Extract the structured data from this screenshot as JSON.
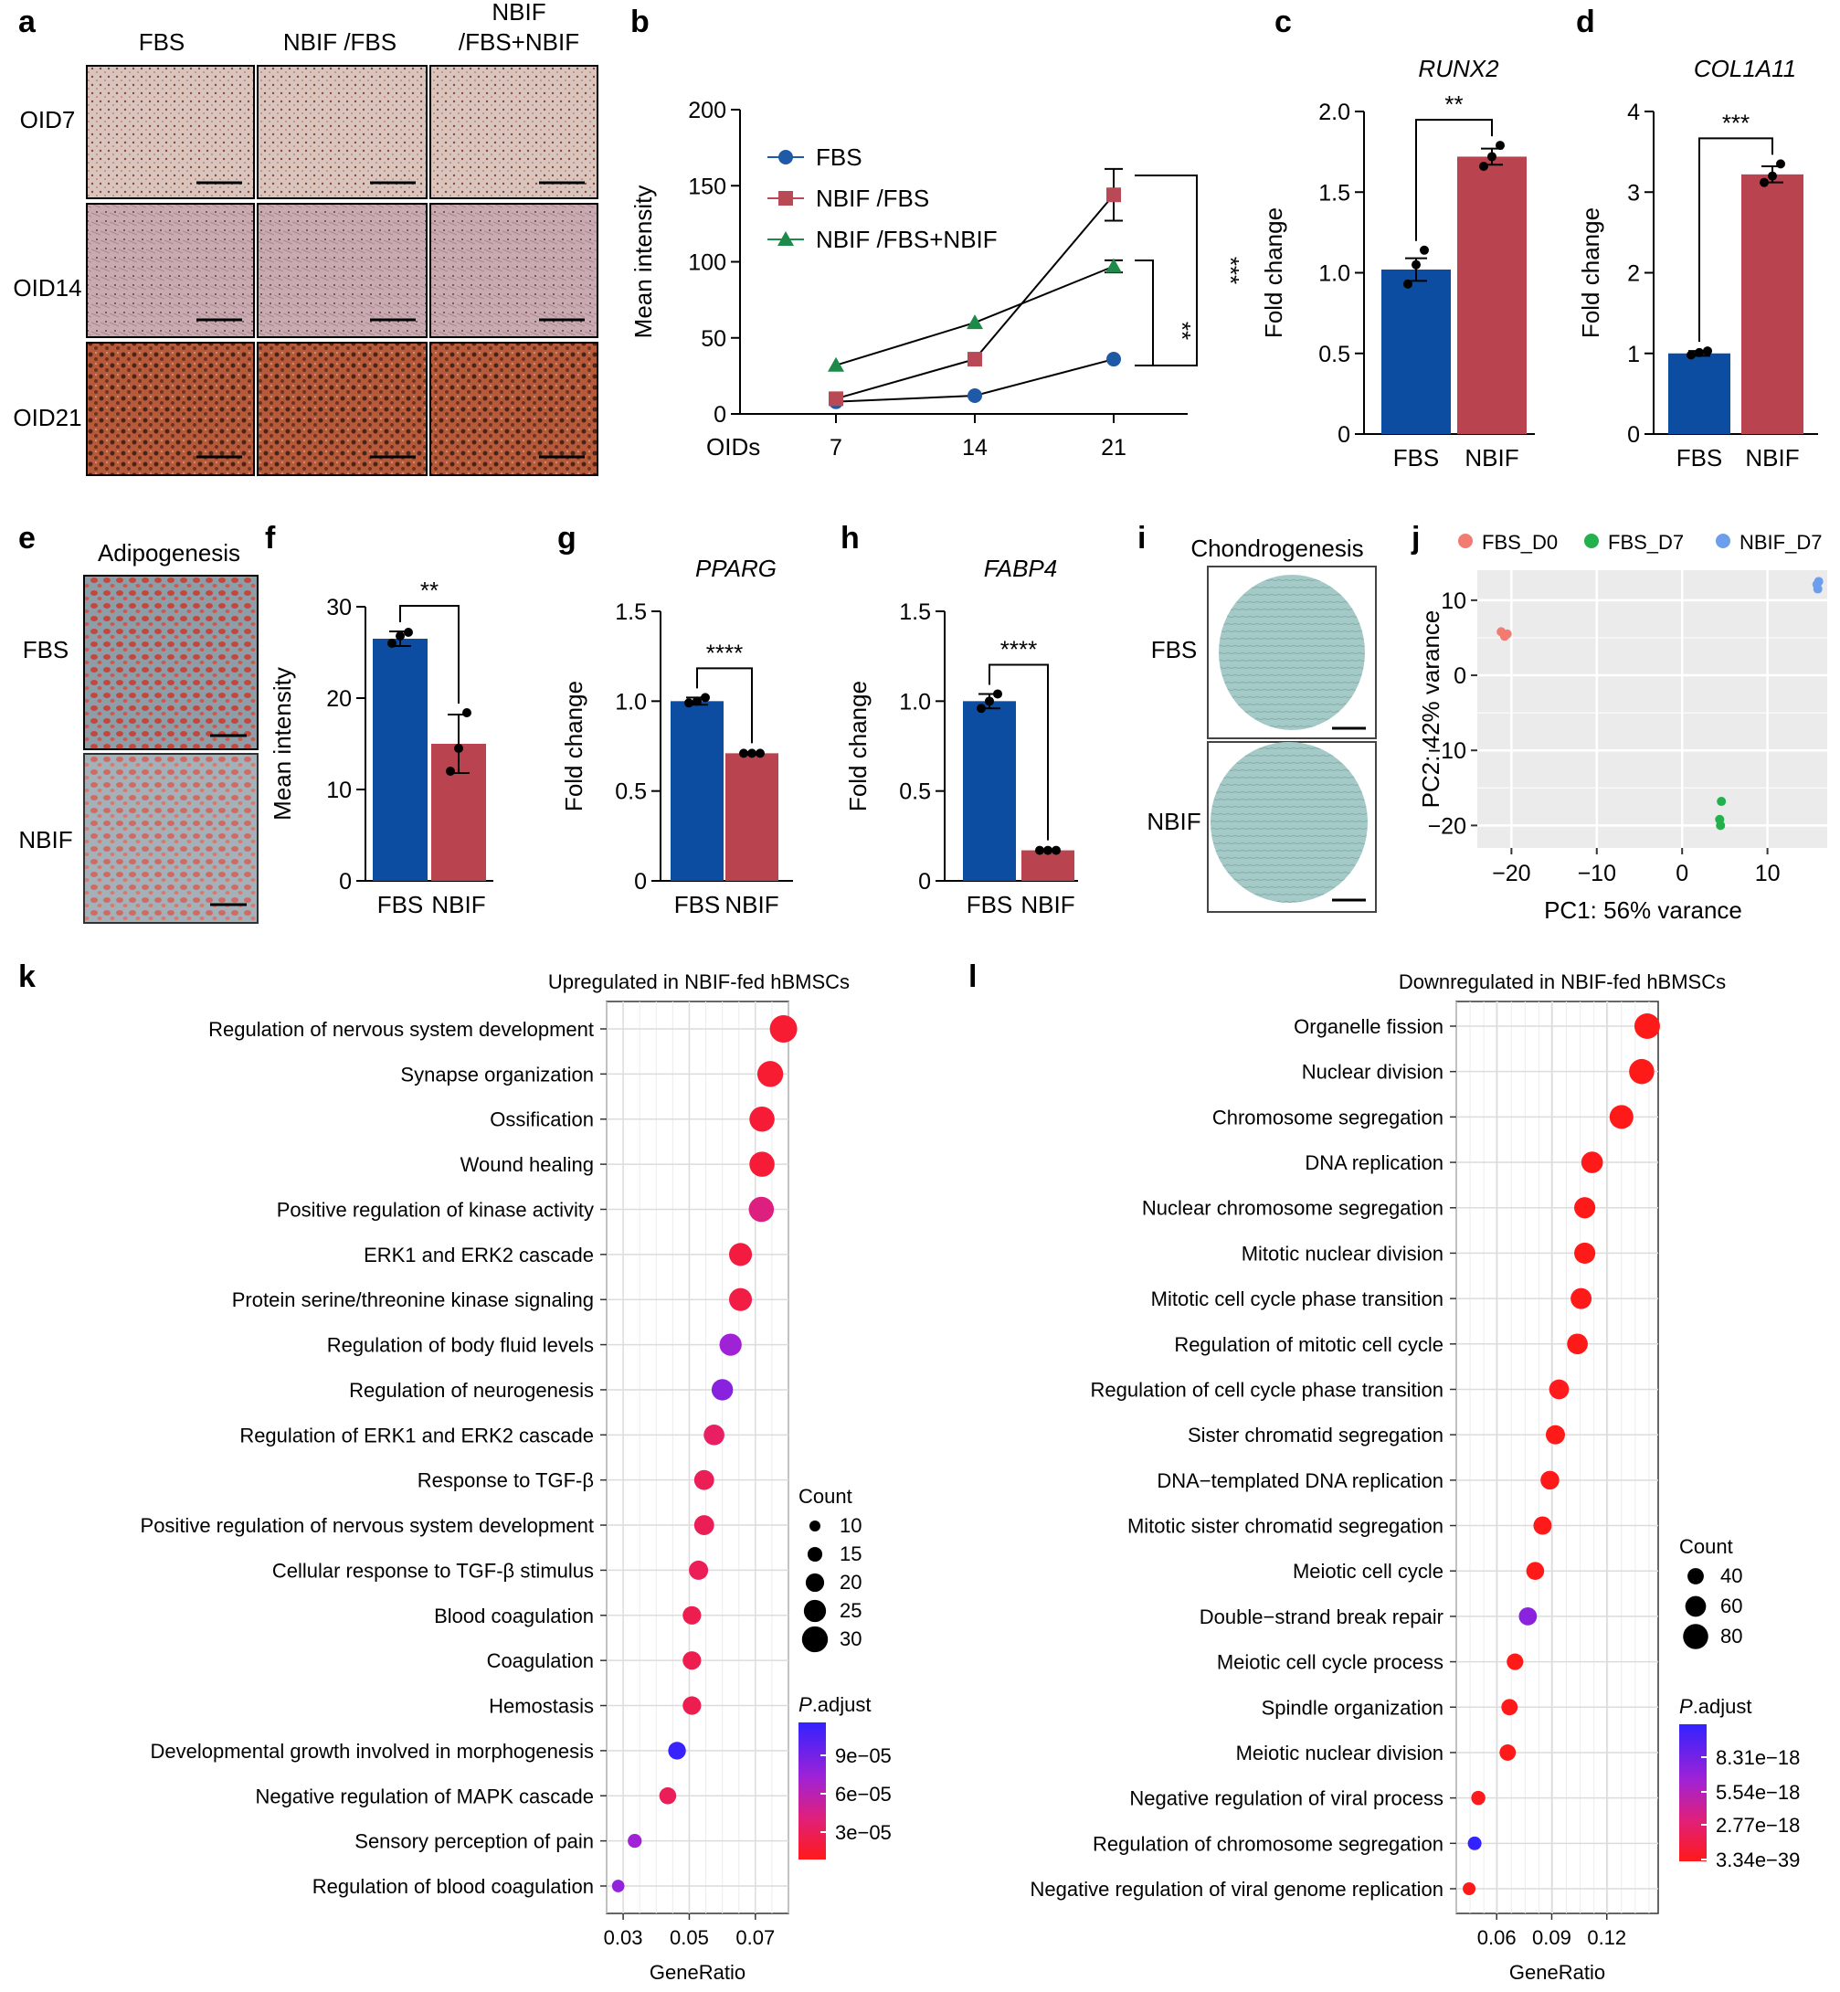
{
  "panels": {
    "a": {
      "letter": "a",
      "columns": [
        "FBS",
        "NBIF /FBS",
        "NBIF\n/FBS+NBIF"
      ],
      "rows": [
        "OID7",
        "OID14",
        "OID21"
      ]
    },
    "e": {
      "letter": "e",
      "title": "Adipogenesis",
      "rows": [
        "FBS",
        "NBIF"
      ]
    },
    "i": {
      "letter": "i",
      "title": "Chondrogenesis",
      "rows": [
        "FBS",
        "NBIF"
      ]
    }
  },
  "chart_data": [
    {
      "id": "b",
      "letter": "b",
      "type": "line",
      "xlabel_prefix": "OIDs",
      "ylabel": "Mean intensity",
      "x": [
        7,
        14,
        21
      ],
      "ylim": [
        0,
        200
      ],
      "yticks": [
        0,
        50,
        100,
        150,
        200
      ],
      "series": [
        {
          "name": "FBS",
          "values": [
            8,
            12,
            36
          ],
          "errors": [
            1,
            1,
            2
          ],
          "color": "#1f5aa6",
          "marker": "circle"
        },
        {
          "name": "NBIF /FBS",
          "values": [
            10,
            36,
            144
          ],
          "errors": [
            1,
            2,
            17
          ],
          "color": "#b94a55",
          "marker": "square"
        },
        {
          "name": "NBIF /FBS+NBIF",
          "values": [
            32,
            60,
            97
          ],
          "errors": [
            2,
            2,
            4
          ],
          "color": "#1e8a4a",
          "marker": "triangle"
        }
      ],
      "significance": [
        "***",
        "**"
      ]
    },
    {
      "id": "c",
      "letter": "c",
      "type": "bar",
      "title": "RUNX2",
      "ylabel": "Fold change",
      "categories": [
        "FBS",
        "NBIF"
      ],
      "values": [
        1.02,
        1.72
      ],
      "errors": [
        0.07,
        0.05
      ],
      "points": [
        [
          0.93,
          1.05,
          1.14
        ],
        [
          1.66,
          1.72,
          1.79
        ]
      ],
      "ylim": [
        0,
        2.0
      ],
      "yticks": [
        "0",
        "0.5",
        "1.0",
        "1.5",
        "2.0"
      ],
      "significance": "**",
      "colors": [
        "#0d4da1",
        "#b94450"
      ]
    },
    {
      "id": "d",
      "letter": "d",
      "type": "bar",
      "title": "COL1A11",
      "ylabel": "Fold change",
      "categories": [
        "FBS",
        "NBIF"
      ],
      "values": [
        1.0,
        3.22
      ],
      "errors": [
        0.03,
        0.1
      ],
      "points": [
        [
          0.98,
          1.01,
          1.03
        ],
        [
          3.12,
          3.2,
          3.35
        ]
      ],
      "ylim": [
        0,
        4
      ],
      "yticks": [
        "0",
        "1",
        "2",
        "3",
        "4"
      ],
      "significance": "***",
      "colors": [
        "#0d4da1",
        "#b94450"
      ]
    },
    {
      "id": "f",
      "letter": "f",
      "type": "bar",
      "title": "",
      "ylabel": "Mean intensity",
      "categories": [
        "FBS",
        "NBIF"
      ],
      "values": [
        26.5,
        15.0
      ],
      "errors": [
        0.8,
        3.2
      ],
      "points": [
        [
          26.0,
          26.8,
          27.2
        ],
        [
          12.0,
          14.5,
          18.4
        ]
      ],
      "ylim": [
        0,
        30
      ],
      "yticks": [
        "0",
        "10",
        "20",
        "30"
      ],
      "significance": "**",
      "colors": [
        "#0d4da1",
        "#b94450"
      ]
    },
    {
      "id": "g",
      "letter": "g",
      "type": "bar",
      "title": "PPARG",
      "ylabel": "Fold change",
      "categories": [
        "FBS",
        "NBIF"
      ],
      "values": [
        1.0,
        0.71
      ],
      "errors": [
        0.02,
        0.005
      ],
      "points": [
        [
          0.99,
          1.0,
          1.02
        ],
        [
          0.71,
          0.71,
          0.71
        ]
      ],
      "ylim": [
        0,
        1.5
      ],
      "yticks": [
        "0",
        "0.5",
        "1.0",
        "1.5"
      ],
      "significance": "****",
      "colors": [
        "#0d4da1",
        "#b94450"
      ]
    },
    {
      "id": "h",
      "letter": "h",
      "type": "bar",
      "title": "FABP4",
      "ylabel": "Fold change",
      "categories": [
        "FBS",
        "NBIF"
      ],
      "values": [
        1.0,
        0.17
      ],
      "errors": [
        0.04,
        0.005
      ],
      "points": [
        [
          0.96,
          1.0,
          1.04
        ],
        [
          0.17,
          0.17,
          0.17
        ]
      ],
      "ylim": [
        0,
        1.5
      ],
      "yticks": [
        "0",
        "0.5",
        "1.0",
        "1.5"
      ],
      "significance": "****",
      "colors": [
        "#0d4da1",
        "#b94450"
      ]
    },
    {
      "id": "j",
      "letter": "j",
      "type": "scatter",
      "xlabel": "PC1: 56% varance",
      "ylabel": "PC2: 42% varance",
      "xlim": [
        -24,
        17
      ],
      "ylim": [
        -23,
        14
      ],
      "xticks": [
        -20,
        -10,
        0,
        10
      ],
      "yticks": [
        -20,
        -10,
        0,
        10
      ],
      "series": [
        {
          "name": "FBS_D0",
          "color": "#f27b72",
          "x": [
            -21.2,
            -20.8,
            -20.5
          ],
          "y": [
            5.8,
            5.2,
            5.5
          ]
        },
        {
          "name": "FBS_D7",
          "color": "#22b14c",
          "x": [
            4.6,
            4.4,
            4.5
          ],
          "y": [
            -16.8,
            -19.2,
            -20.0
          ]
        },
        {
          "name": "NBIF_D7",
          "color": "#6d9eeb",
          "x": [
            15.8,
            15.9,
            16.0
          ],
          "y": [
            12.1,
            11.5,
            12.5
          ]
        }
      ]
    },
    {
      "id": "k",
      "letter": "k",
      "type": "scatter",
      "title": "Upregulated in NBIF-fed hBMSCs",
      "xlabel": "GeneRatio",
      "xlim": [
        0.025,
        0.08
      ],
      "xticks": [
        0.03,
        0.05,
        0.07
      ],
      "xtick_labels": [
        "0.03",
        "0.05",
        "0.07"
      ],
      "terms": [
        "Regulation of nervous system development",
        "Synapse organization",
        "Ossification",
        "Wound healing",
        "Positive regulation of kinase activity",
        "ERK1 and ERK2 cascade",
        "Protein serine/threonine kinase signaling",
        "Regulation of body fluid levels",
        "Regulation of neurogenesis",
        "Regulation of ERK1 and ERK2 cascade",
        "Response to TGF-β",
        "Positive regulation of nervous system development",
        "Cellular response to TGF-β stimulus",
        "Blood coagulation",
        "Coagulation",
        "Hemostasis",
        "Developmental growth involved in morphogenesis",
        "Negative regulation of MAPK cascade",
        "Sensory perception of pain",
        "Regulation of blood coagulation"
      ],
      "gene_ratio": [
        0.0785,
        0.0745,
        0.072,
        0.072,
        0.0718,
        0.0655,
        0.0655,
        0.0625,
        0.06,
        0.0575,
        0.0545,
        0.0545,
        0.0528,
        0.0508,
        0.0508,
        0.0508,
        0.0463,
        0.0435,
        0.0335,
        0.0285
      ],
      "count": [
        32,
        30,
        29,
        29,
        29,
        26,
        26,
        25,
        24,
        23,
        22,
        22,
        21,
        20,
        20,
        20,
        19,
        18,
        14,
        12
      ],
      "p_adjust": [
        1e-05,
        1e-05,
        1.2e-05,
        1.2e-05,
        4.2e-05,
        1.6e-05,
        1.8e-05,
        8e-05,
        8.8e-05,
        3e-05,
        2.5e-05,
        2.5e-05,
        2.6e-05,
        2.2e-05,
        2.2e-05,
        2.2e-05,
        0.000118,
        2.6e-05,
        8e-05,
        8.5e-05
      ],
      "count_legend": {
        "title": "Count",
        "values": [
          10,
          15,
          20,
          25,
          30
        ]
      },
      "color_legend": {
        "title_prefix": "P",
        "title_suffix": ".adjust",
        "labels": [
          "9e−05",
          "6e−05",
          "3e−05"
        ]
      }
    },
    {
      "id": "l",
      "letter": "l",
      "type": "scatter",
      "title": "Downregulated in NBIF-fed hBMSCs",
      "xlabel": "GeneRatio",
      "xlim": [
        0.038,
        0.148
      ],
      "xticks": [
        0.06,
        0.09,
        0.12
      ],
      "xtick_labels": [
        "0.06",
        "0.09",
        "0.12"
      ],
      "terms": [
        "Organelle fission",
        "Nuclear division",
        "Chromosome segregation",
        "DNA replication",
        "Nuclear chromosome segregation",
        "Mitotic nuclear division",
        "Mitotic cell cycle phase transition",
        "Regulation of mitotic cell cycle",
        "Regulation of cell cycle phase transition",
        "Sister chromatid segregation",
        "DNA−templated DNA replication",
        "Mitotic sister chromatid segregation",
        "Meiotic cell cycle",
        "Double−strand break repair",
        "Meiotic cell cycle process",
        "Spindle organization",
        "Meiotic nuclear division",
        "Negative regulation of viral process",
        "Regulation of chromosome segregation",
        "Negative regulation of viral genome replication"
      ],
      "gene_ratio": [
        0.142,
        0.139,
        0.128,
        0.112,
        0.108,
        0.108,
        0.106,
        0.104,
        0.094,
        0.092,
        0.089,
        0.085,
        0.081,
        0.077,
        0.07,
        0.067,
        0.066,
        0.05,
        0.048,
        0.045
      ],
      "count": [
        82,
        80,
        74,
        64,
        62,
        62,
        61,
        60,
        56,
        53,
        51,
        49,
        47,
        48,
        41,
        40,
        40,
        30,
        28,
        24
      ],
      "p_adjust": [
        3.34e-39,
        3.34e-39,
        5e-37,
        1e-30,
        1e-30,
        1e-30,
        1e-30,
        1e-30,
        1e-19,
        1e-25,
        1e-25,
        1e-25,
        1e-20,
        8e-18,
        1e-20,
        1e-20,
        1e-20,
        1e-19,
        1.1e-17,
        1e-30
      ],
      "count_legend": {
        "title": "Count",
        "values": [
          40,
          60,
          80
        ]
      },
      "color_legend": {
        "title_prefix": "P",
        "title_suffix": ".adjust",
        "labels": [
          "8.31e−18",
          "5.54e−18",
          "2.77e−18",
          "3.34e−39"
        ]
      }
    }
  ]
}
